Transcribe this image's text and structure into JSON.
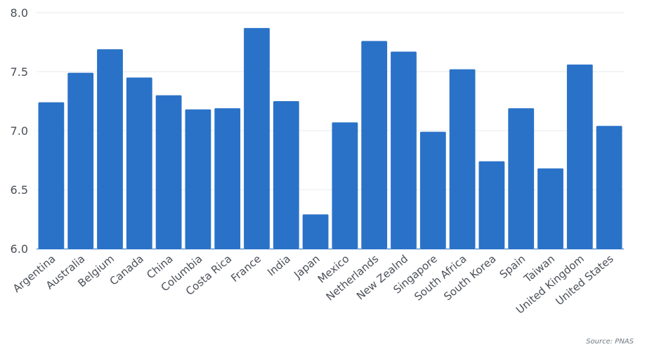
{
  "chart_data": {
    "type": "bar",
    "categories": [
      "Argentina",
      "Australia",
      "Belgium",
      "Canada",
      "China",
      "Columbia",
      "Costa Rica",
      "France",
      "India",
      "Japan",
      "Mexico",
      "Netherlands",
      "New Zealnd",
      "Singapore",
      "South Africa",
      "South Korea",
      "Spain",
      "Taiwan",
      "United Kingdom",
      "United States"
    ],
    "values": [
      7.24,
      7.49,
      7.69,
      7.45,
      7.3,
      7.18,
      7.19,
      7.87,
      7.25,
      6.29,
      7.07,
      7.76,
      7.67,
      6.99,
      7.52,
      6.74,
      7.19,
      6.68,
      7.56,
      7.04
    ],
    "ylim": [
      6.0,
      8.0
    ],
    "yticks": [
      "6.0",
      "6.5",
      "7.0",
      "7.5",
      "8.0"
    ],
    "grid": true,
    "bar_color": "#2a72c8",
    "source": "Source: PNAS"
  }
}
